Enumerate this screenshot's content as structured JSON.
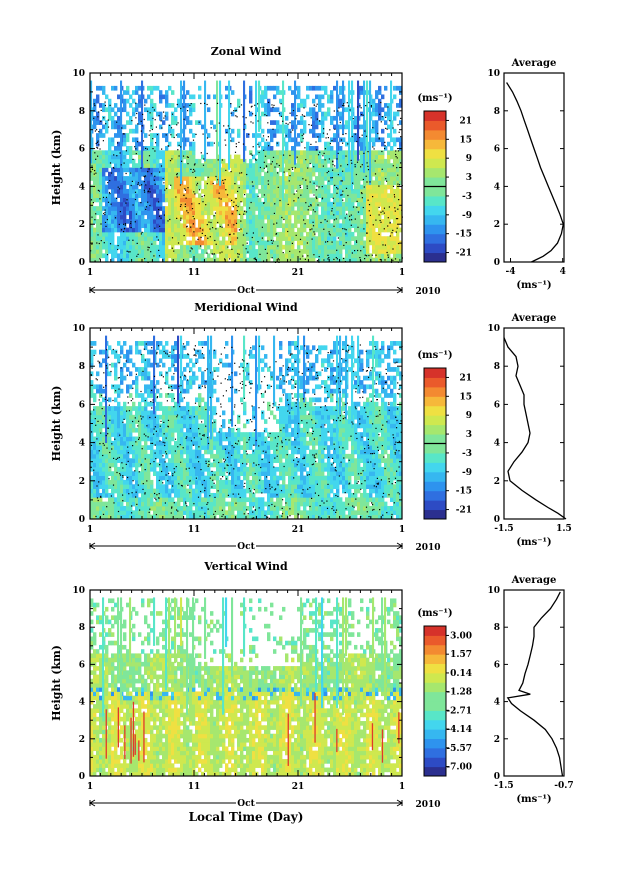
{
  "chart_data": [
    {
      "type": "heatmap",
      "title": "Zonal Wind",
      "ylabel": "Height (km)",
      "ylim": [
        0,
        10
      ],
      "yticks": [
        "0",
        "2",
        "4",
        "6",
        "8",
        "10"
      ],
      "xticks": [
        "1",
        "11",
        "21",
        "1"
      ],
      "month_label": "Oct",
      "year_label": "2010",
      "colorbar": {
        "unit": "(ms⁻¹)",
        "min": -24,
        "max": 24,
        "ticks": [
          "21",
          "15",
          "9",
          "3",
          "-3",
          "-9",
          "-15",
          "-21"
        ],
        "zero_line": true
      },
      "average": {
        "title": "Average",
        "xlabel": "(ms⁻¹)",
        "xticks": [
          "-4",
          "4"
        ],
        "xlim": [
          -5,
          4.2
        ],
        "yticks": [
          "0",
          "2",
          "4",
          "6",
          "8",
          "10"
        ],
        "profile": [
          {
            "h": 0.0,
            "v": -0.8
          },
          {
            "h": 0.3,
            "v": 1.0
          },
          {
            "h": 0.6,
            "v": 2.2
          },
          {
            "h": 1.0,
            "v": 3.2
          },
          {
            "h": 1.5,
            "v": 3.8
          },
          {
            "h": 2.0,
            "v": 4.1
          },
          {
            "h": 2.5,
            "v": 3.6
          },
          {
            "h": 3.0,
            "v": 3.0
          },
          {
            "h": 3.5,
            "v": 2.4
          },
          {
            "h": 4.0,
            "v": 1.8
          },
          {
            "h": 4.5,
            "v": 1.2
          },
          {
            "h": 5.0,
            "v": 0.6
          },
          {
            "h": 5.5,
            "v": 0.1
          },
          {
            "h": 6.0,
            "v": -0.4
          },
          {
            "h": 6.5,
            "v": -0.9
          },
          {
            "h": 7.0,
            "v": -1.4
          },
          {
            "h": 7.5,
            "v": -1.9
          },
          {
            "h": 8.0,
            "v": -2.4
          },
          {
            "h": 8.5,
            "v": -3.0
          },
          {
            "h": 9.0,
            "v": -3.7
          },
          {
            "h": 9.5,
            "v": -4.6
          }
        ]
      }
    },
    {
      "type": "heatmap",
      "title": "Meridional Wind",
      "ylabel": "Height (km)",
      "ylim": [
        0,
        10
      ],
      "yticks": [
        "0",
        "2",
        "4",
        "6",
        "8",
        "10"
      ],
      "xticks": [
        "1",
        "11",
        "21",
        "1"
      ],
      "month_label": "Oct",
      "year_label": "2010",
      "colorbar": {
        "unit": "(ms⁻¹)",
        "min": -24,
        "max": 24,
        "ticks": [
          "21",
          "15",
          "9",
          "3",
          "-3",
          "-9",
          "-15",
          "-21"
        ],
        "zero_line": true
      },
      "average": {
        "title": "Average",
        "xlabel": "(ms⁻¹)",
        "xticks": [
          "-1.5",
          "1.5"
        ],
        "xlim": [
          -1.5,
          1.5
        ],
        "yticks": [
          "0",
          "2",
          "4",
          "6",
          "8",
          "10"
        ],
        "profile": [
          {
            "h": 0.0,
            "v": 1.6
          },
          {
            "h": 0.3,
            "v": 1.2
          },
          {
            "h": 0.6,
            "v": 0.7
          },
          {
            "h": 1.0,
            "v": 0.1
          },
          {
            "h": 1.5,
            "v": -0.6
          },
          {
            "h": 2.0,
            "v": -1.2
          },
          {
            "h": 2.5,
            "v": -1.3
          },
          {
            "h": 3.0,
            "v": -1.0
          },
          {
            "h": 3.5,
            "v": -0.6
          },
          {
            "h": 4.0,
            "v": -0.3
          },
          {
            "h": 4.5,
            "v": -0.2
          },
          {
            "h": 5.0,
            "v": -0.3
          },
          {
            "h": 5.5,
            "v": -0.4
          },
          {
            "h": 6.0,
            "v": -0.5
          },
          {
            "h": 6.5,
            "v": -0.5
          },
          {
            "h": 7.0,
            "v": -0.7
          },
          {
            "h": 7.5,
            "v": -0.9
          },
          {
            "h": 8.0,
            "v": -0.8
          },
          {
            "h": 8.5,
            "v": -0.9
          },
          {
            "h": 9.0,
            "v": -1.3
          },
          {
            "h": 9.5,
            "v": -1.5
          }
        ]
      }
    },
    {
      "type": "heatmap",
      "title": "Vertical Wind",
      "ylabel": "Height (km)",
      "xlabel": "Local Time (Day)",
      "ylim": [
        0,
        10
      ],
      "yticks": [
        "0",
        "2",
        "4",
        "6",
        "8",
        "10"
      ],
      "xticks": [
        "1",
        "11",
        "21",
        "1"
      ],
      "month_label": "Oct",
      "year_label": "2010",
      "colorbar": {
        "unit": "(ms⁻¹)",
        "min": -7.72,
        "max": 3.72,
        "ticks": [
          "3.00",
          "1.57",
          "0.14",
          "-1.28",
          "-2.71",
          "-4.14",
          "-5.57",
          "-7.00"
        ],
        "zero_line": false
      },
      "average": {
        "title": "Average",
        "xlabel": "(ms⁻¹)",
        "xticks": [
          "-1.5",
          "-0.7"
        ],
        "xlim": [
          -1.5,
          -0.7
        ],
        "yticks": [
          "0",
          "2",
          "4",
          "6",
          "8",
          "10"
        ],
        "profile": [
          {
            "h": 0.0,
            "v": -0.72
          },
          {
            "h": 0.5,
            "v": -0.74
          },
          {
            "h": 1.0,
            "v": -0.76
          },
          {
            "h": 1.5,
            "v": -0.8
          },
          {
            "h": 2.0,
            "v": -0.86
          },
          {
            "h": 2.5,
            "v": -0.95
          },
          {
            "h": 3.0,
            "v": -1.1
          },
          {
            "h": 3.5,
            "v": -1.28
          },
          {
            "h": 3.9,
            "v": -1.4
          },
          {
            "h": 4.2,
            "v": -1.45
          },
          {
            "h": 4.4,
            "v": -1.15
          },
          {
            "h": 4.6,
            "v": -1.3
          },
          {
            "h": 5.0,
            "v": -1.25
          },
          {
            "h": 5.5,
            "v": -1.22
          },
          {
            "h": 6.0,
            "v": -1.18
          },
          {
            "h": 6.5,
            "v": -1.15
          },
          {
            "h": 7.0,
            "v": -1.12
          },
          {
            "h": 7.5,
            "v": -1.1
          },
          {
            "h": 8.0,
            "v": -1.1
          },
          {
            "h": 8.5,
            "v": -1.0
          },
          {
            "h": 9.0,
            "v": -0.88
          },
          {
            "h": 9.5,
            "v": -0.8
          },
          {
            "h": 9.9,
            "v": -0.75
          }
        ]
      }
    }
  ]
}
